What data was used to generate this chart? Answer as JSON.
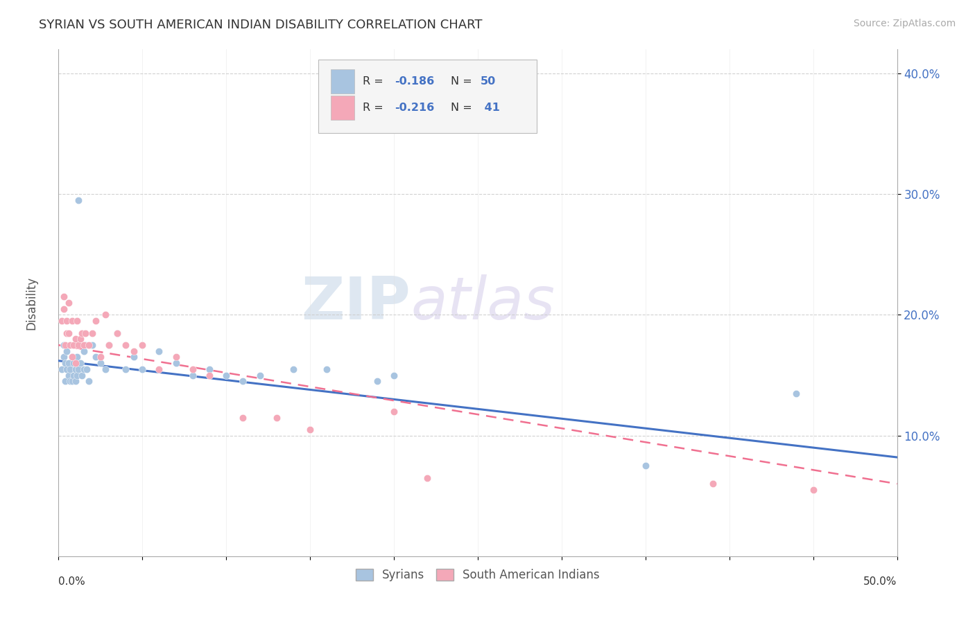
{
  "title": "SYRIAN VS SOUTH AMERICAN INDIAN DISABILITY CORRELATION CHART",
  "source": "Source: ZipAtlas.com",
  "ylabel": "Disability",
  "xlim": [
    0.0,
    0.5
  ],
  "ylim": [
    0.0,
    0.42
  ],
  "yticks": [
    0.1,
    0.2,
    0.3,
    0.4
  ],
  "ytick_labels": [
    "10.0%",
    "20.0%",
    "30.0%",
    "40.0%"
  ],
  "xtick_labels": [
    "0.0%",
    "",
    "",
    "",
    "",
    "",
    "",
    "",
    "",
    "",
    "50.0%"
  ],
  "syrians_R": -0.186,
  "syrians_N": 50,
  "sai_R": -0.216,
  "sai_N": 41,
  "scatter_color_syrians": "#a8c4e0",
  "scatter_color_sai": "#f4a8b8",
  "line_color_syrians": "#4472c4",
  "line_color_sai": "#f07090",
  "watermark_zip": "ZIP",
  "watermark_atlas": "atlas",
  "syrians_x": [
    0.002,
    0.003,
    0.003,
    0.004,
    0.004,
    0.005,
    0.005,
    0.006,
    0.006,
    0.007,
    0.007,
    0.008,
    0.008,
    0.009,
    0.009,
    0.01,
    0.01,
    0.011,
    0.011,
    0.012,
    0.012,
    0.013,
    0.014,
    0.015,
    0.015,
    0.016,
    0.017,
    0.018,
    0.02,
    0.022,
    0.025,
    0.028,
    0.03,
    0.035,
    0.04,
    0.045,
    0.05,
    0.06,
    0.07,
    0.08,
    0.09,
    0.1,
    0.11,
    0.12,
    0.14,
    0.16,
    0.19,
    0.2,
    0.35,
    0.44
  ],
  "syrians_y": [
    0.155,
    0.175,
    0.165,
    0.145,
    0.16,
    0.155,
    0.17,
    0.15,
    0.16,
    0.145,
    0.155,
    0.165,
    0.145,
    0.15,
    0.16,
    0.145,
    0.155,
    0.15,
    0.165,
    0.155,
    0.295,
    0.16,
    0.15,
    0.155,
    0.17,
    0.175,
    0.155,
    0.145,
    0.175,
    0.165,
    0.16,
    0.155,
    0.175,
    0.185,
    0.155,
    0.165,
    0.155,
    0.17,
    0.16,
    0.15,
    0.155,
    0.15,
    0.145,
    0.15,
    0.155,
    0.155,
    0.145,
    0.15,
    0.075,
    0.135
  ],
  "sai_x": [
    0.002,
    0.003,
    0.003,
    0.004,
    0.005,
    0.005,
    0.006,
    0.006,
    0.007,
    0.008,
    0.008,
    0.009,
    0.01,
    0.01,
    0.011,
    0.012,
    0.013,
    0.014,
    0.015,
    0.016,
    0.018,
    0.02,
    0.022,
    0.025,
    0.028,
    0.03,
    0.035,
    0.04,
    0.045,
    0.05,
    0.06,
    0.07,
    0.08,
    0.09,
    0.11,
    0.13,
    0.15,
    0.2,
    0.22,
    0.39,
    0.45
  ],
  "sai_y": [
    0.195,
    0.215,
    0.205,
    0.175,
    0.195,
    0.185,
    0.21,
    0.185,
    0.175,
    0.195,
    0.165,
    0.175,
    0.18,
    0.16,
    0.195,
    0.175,
    0.18,
    0.185,
    0.175,
    0.185,
    0.175,
    0.185,
    0.195,
    0.165,
    0.2,
    0.175,
    0.185,
    0.175,
    0.17,
    0.175,
    0.155,
    0.165,
    0.155,
    0.15,
    0.115,
    0.115,
    0.105,
    0.12,
    0.065,
    0.06,
    0.055
  ]
}
